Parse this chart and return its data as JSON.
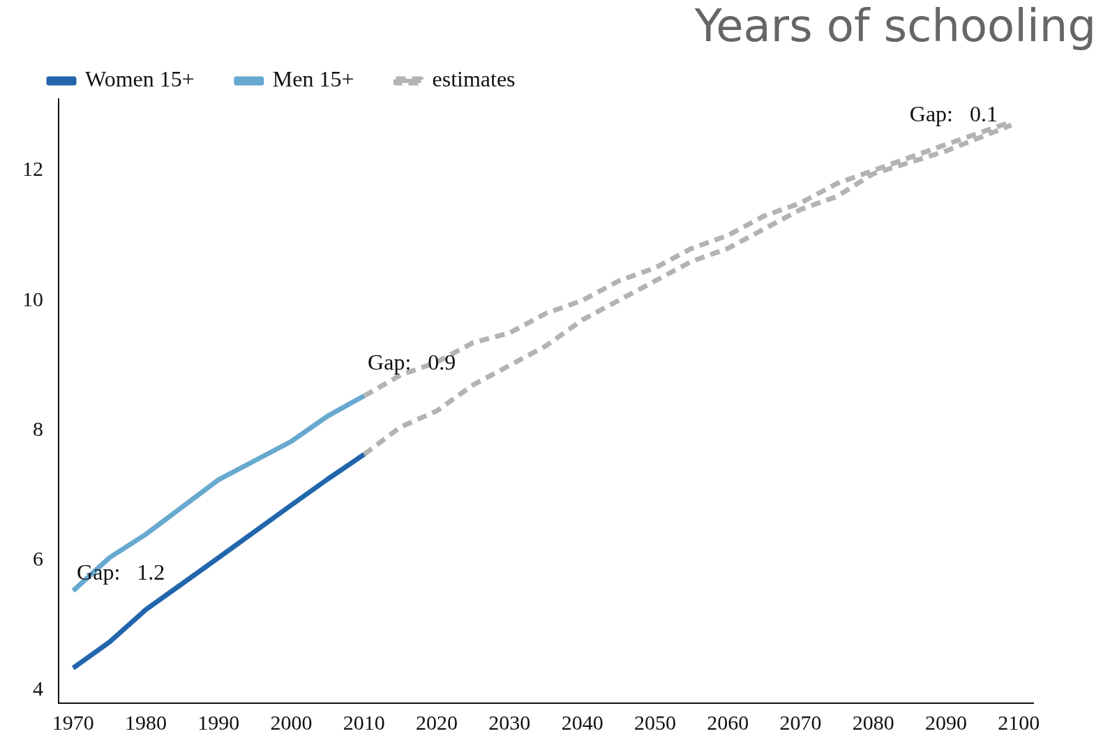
{
  "chart_data": {
    "type": "line",
    "title": "Years of schooling",
    "xlim": [
      1968,
      2102
    ],
    "xticks": [
      1970,
      1980,
      1990,
      2000,
      2010,
      2020,
      2030,
      2040,
      2050,
      2060,
      2070,
      2080,
      2090,
      2100
    ],
    "ylim": [
      3.8,
      13.1
    ],
    "yticks": [
      4,
      6,
      8,
      10,
      12
    ],
    "grid": false,
    "legend": "top left",
    "marker": "none",
    "series": [
      {
        "name": "Women 15+",
        "color": "#2166ac",
        "line_style": "solid",
        "x": [
          1970,
          1975,
          1980,
          1990,
          2000,
          2005,
          2010
        ],
        "values": [
          4.34,
          4.74,
          5.24,
          6.04,
          6.85,
          7.25,
          7.63
        ]
      },
      {
        "name": "Men 15+",
        "color": "#67a9cf",
        "line_style": "solid",
        "x": [
          1970,
          1975,
          1980,
          1990,
          2000,
          2005,
          2010
        ],
        "values": [
          5.53,
          6.04,
          6.4,
          7.24,
          7.83,
          8.22,
          8.53
        ]
      },
      {
        "name": "estimates",
        "color": "#b3b3b3",
        "line_style": "dashed",
        "x": [
          2010,
          2015,
          2020,
          2025,
          2030,
          2035,
          2040,
          2045,
          2050,
          2055,
          2060,
          2065,
          2070,
          2075,
          2080,
          2090,
          2099
        ],
        "values": [
          8.53,
          8.85,
          9.05,
          9.35,
          9.5,
          9.8,
          10.0,
          10.3,
          10.5,
          10.8,
          11.0,
          11.3,
          11.5,
          11.8,
          12.0,
          12.4,
          12.75
        ]
      },
      {
        "color": "#b3b3b3",
        "line_style": "dashed",
        "x": [
          2010,
          2015,
          2020,
          2025,
          2030,
          2035,
          2040,
          2045,
          2050,
          2055,
          2060,
          2065,
          2070,
          2075,
          2080,
          2090,
          2099
        ],
        "values": [
          7.63,
          8.05,
          8.3,
          8.7,
          9.0,
          9.3,
          9.7,
          10.0,
          10.3,
          10.6,
          10.8,
          11.1,
          11.4,
          11.6,
          11.95,
          12.3,
          12.7
        ]
      }
    ],
    "annotations": [
      "Gap:   1.2",
      "Gap:   0.9",
      "Gap:   0.1"
    ]
  }
}
